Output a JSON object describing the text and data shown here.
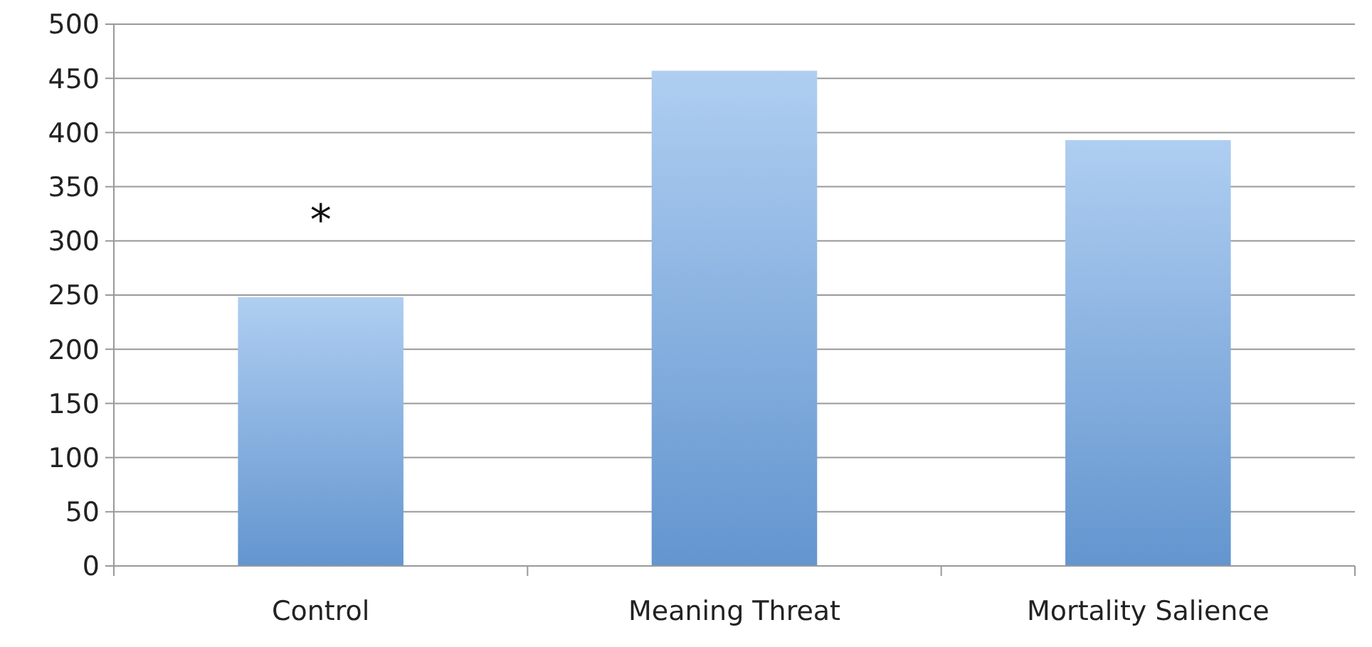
{
  "chart_data": {
    "type": "bar",
    "categories": [
      "Control",
      "Meaning Threat",
      "Mortality Salience"
    ],
    "values": [
      248,
      457,
      393
    ],
    "color": "#6ea6e6",
    "ylim": [
      0,
      500
    ],
    "yticks": [
      0,
      50,
      100,
      150,
      200,
      250,
      300,
      350,
      400,
      450,
      500
    ],
    "grid": "y",
    "annotations": [
      "*"
    ]
  }
}
